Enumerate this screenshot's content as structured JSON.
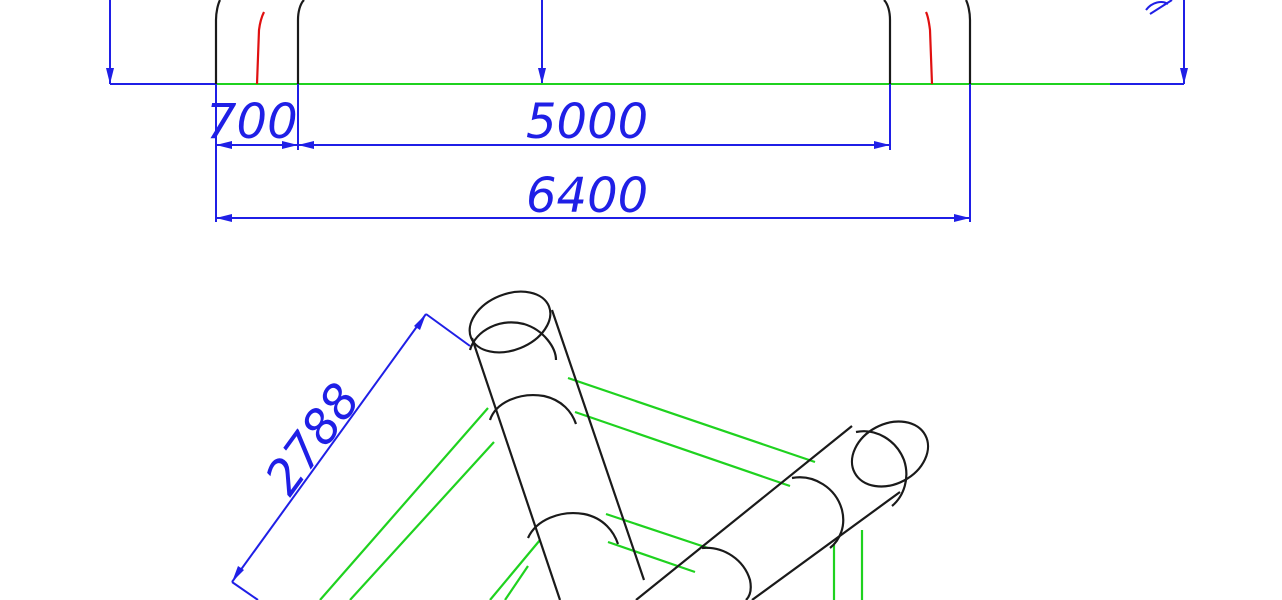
{
  "drawing": {
    "dimensions": {
      "leg_width": "700",
      "inner_span": "5000",
      "outer_span": "6400",
      "tube_length": "2788"
    },
    "colors": {
      "dimension": "#1f1fe6",
      "ground_line": "#1fd21f",
      "structure": "#1a1a1a",
      "marker": "#e01010"
    }
  }
}
